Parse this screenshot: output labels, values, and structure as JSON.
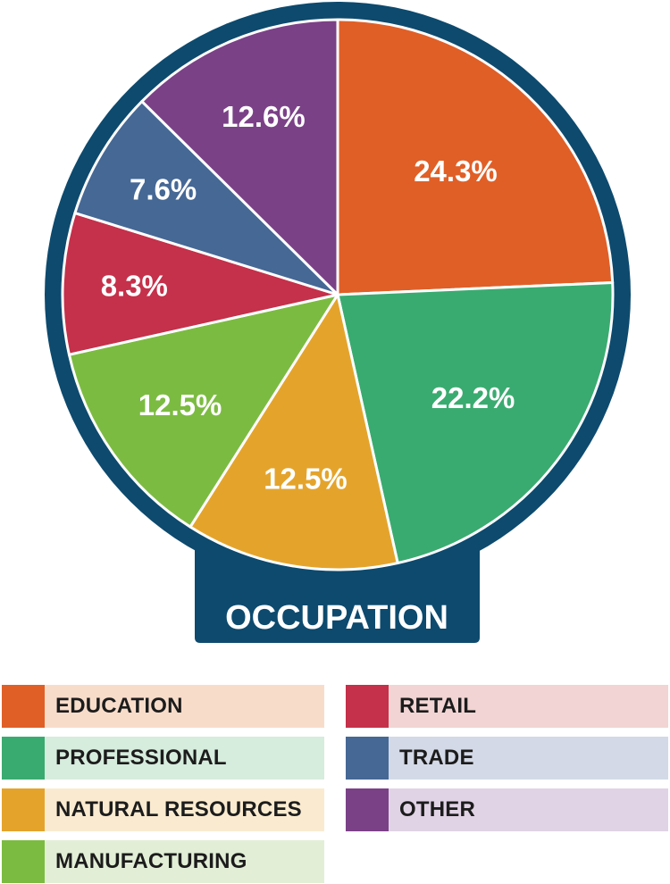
{
  "chart_data": {
    "type": "pie",
    "title": "OCCUPATION",
    "slices": [
      {
        "label": "EDUCATION",
        "value": 24.3,
        "display": "24.3%",
        "color": "#e05f27",
        "legend_bg": "#f8dcca"
      },
      {
        "label": "PROFESSIONAL",
        "value": 22.2,
        "display": "22.2%",
        "color": "#3aab70",
        "legend_bg": "#d6ecdd"
      },
      {
        "label": "NATURAL RESOURCES",
        "value": 12.5,
        "display": "12.5%",
        "color": "#e4a42c",
        "legend_bg": "#faebd0"
      },
      {
        "label": "MANUFACTURING",
        "value": 12.5,
        "display": "12.5%",
        "color": "#7cbb42",
        "legend_bg": "#e2efd6"
      },
      {
        "label": "RETAIL",
        "value": 8.3,
        "display": "8.3%",
        "color": "#c5304a",
        "legend_bg": "#f1d4d3"
      },
      {
        "label": "TRADE",
        "value": 7.6,
        "display": "7.6%",
        "color": "#456895",
        "legend_bg": "#d3d9e6"
      },
      {
        "label": "OTHER",
        "value": 12.6,
        "display": "12.6%",
        "color": "#7b4187",
        "legend_bg": "#e0d3e5"
      }
    ],
    "frame_color": "#0d4a6e",
    "legend_placement": "bottom"
  }
}
